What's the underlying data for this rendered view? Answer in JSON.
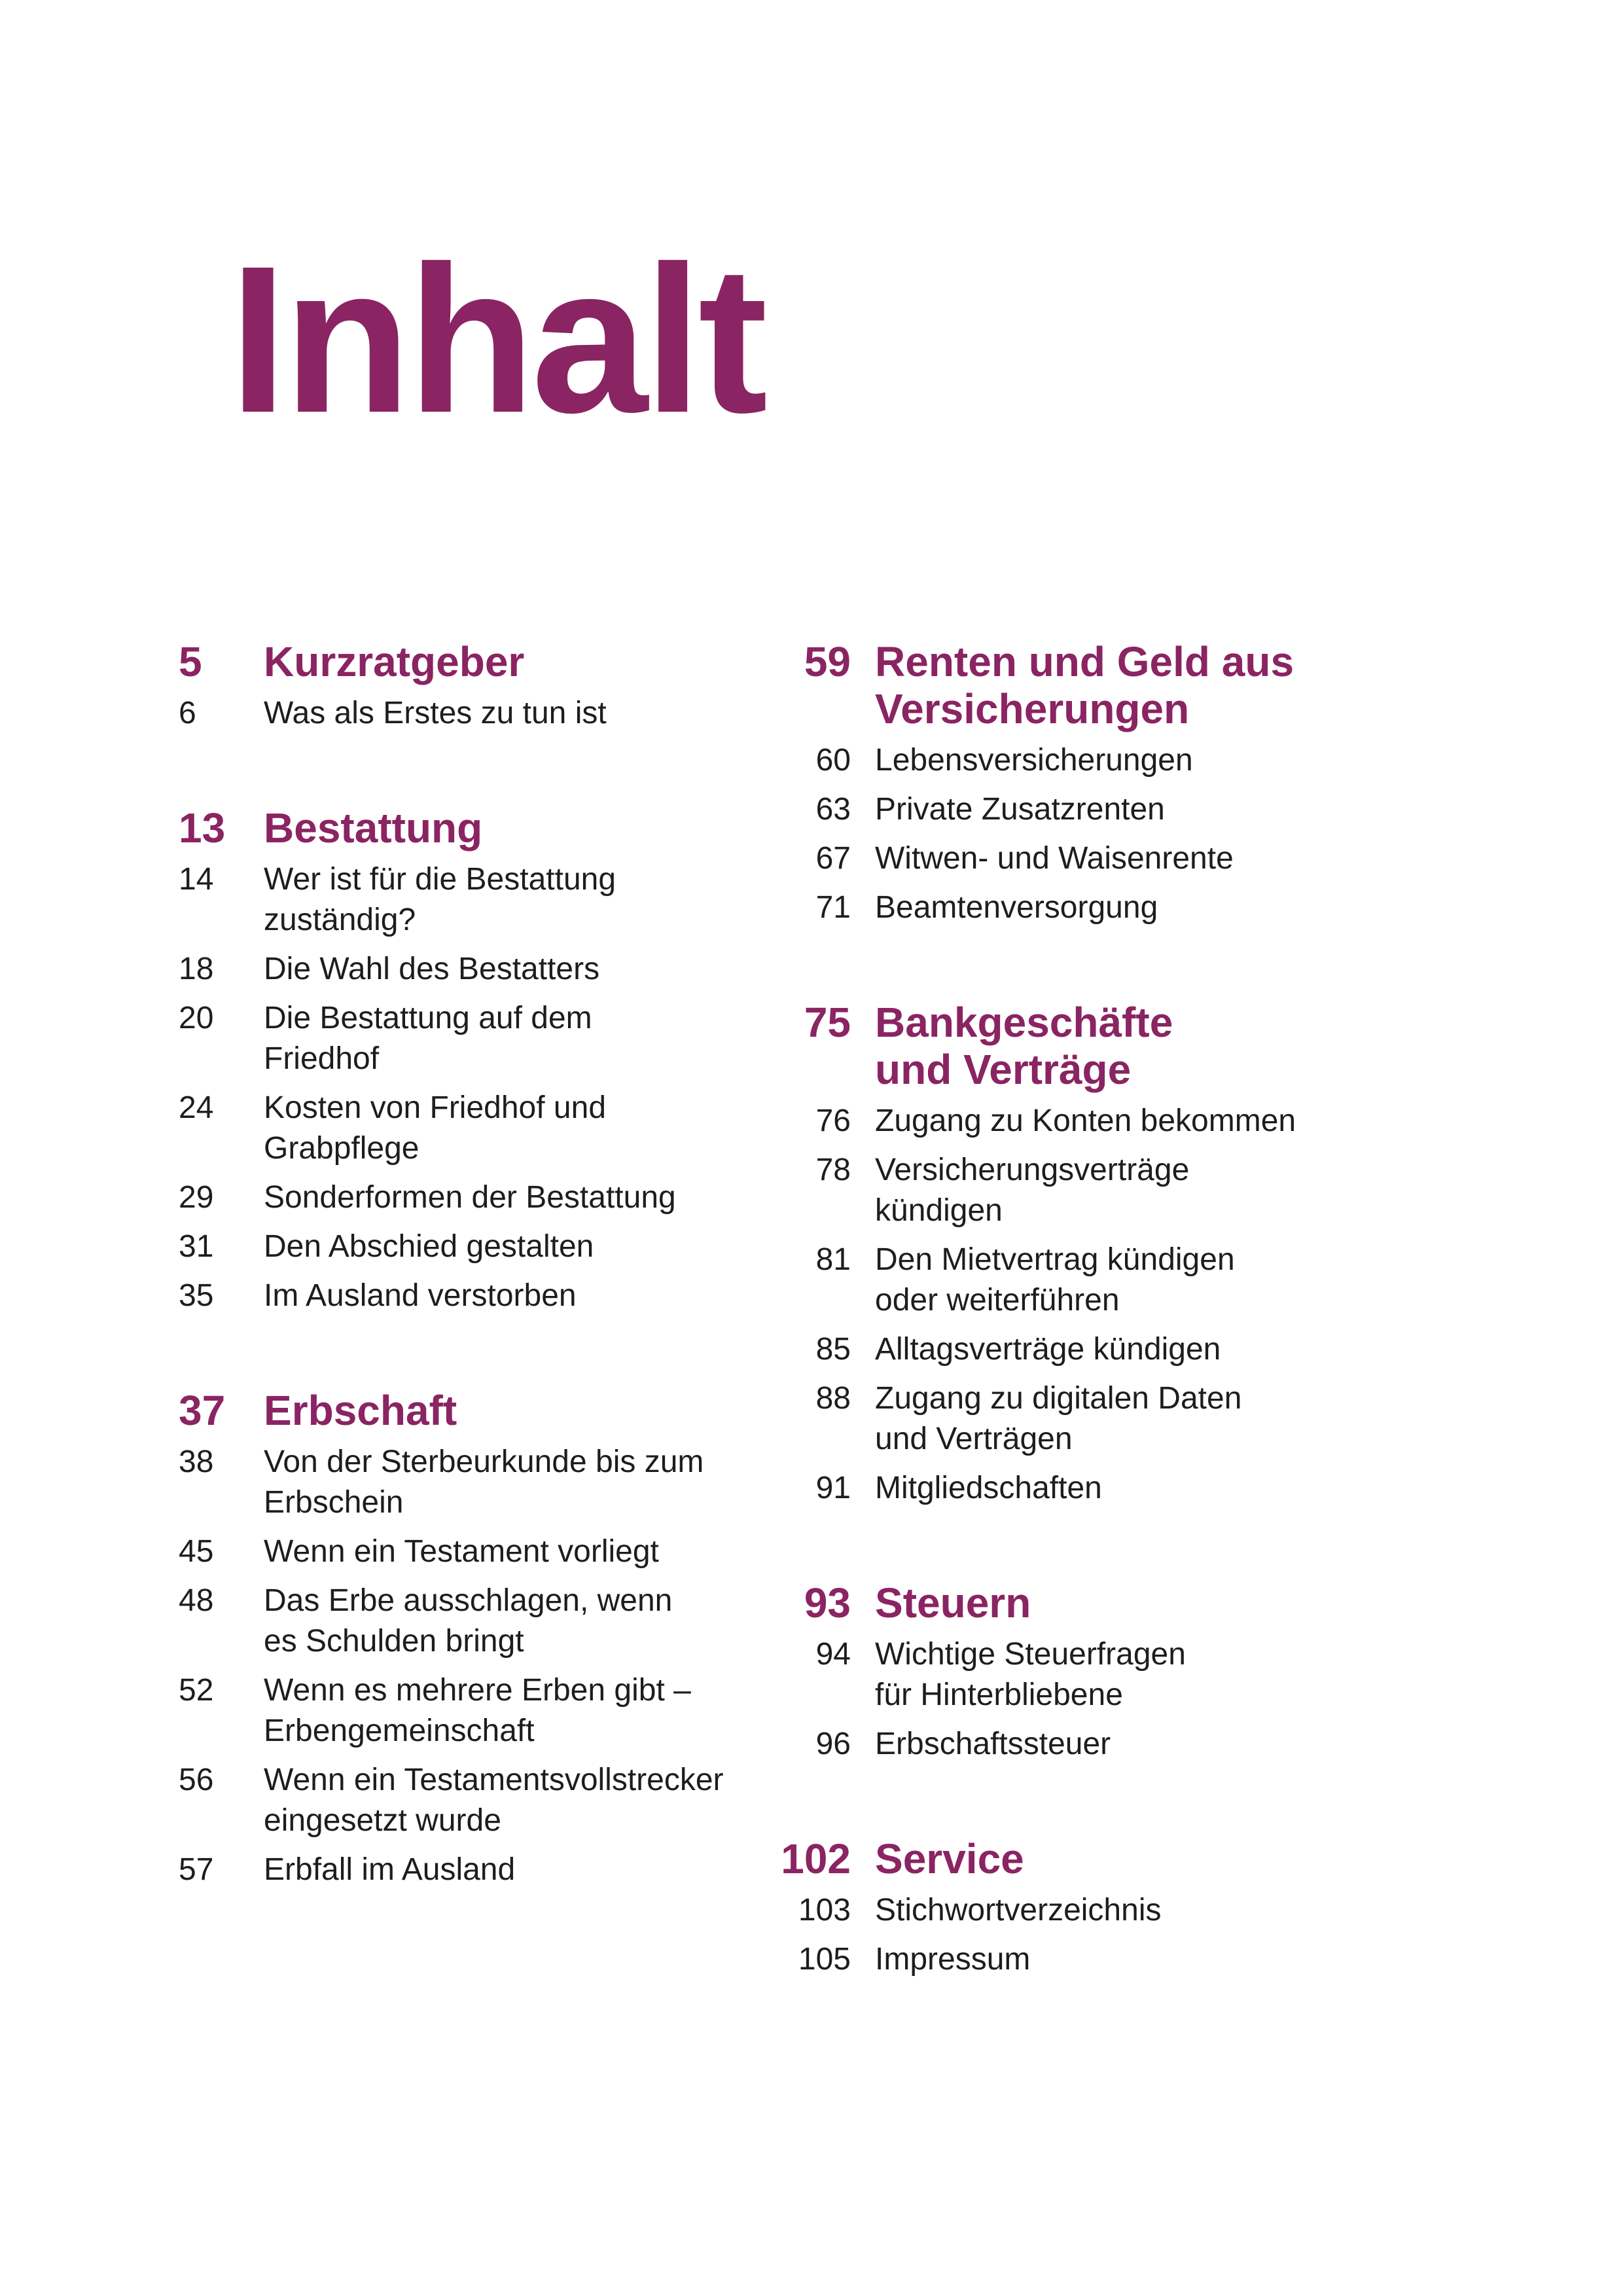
{
  "page": {
    "title": "Inhalt",
    "colors": {
      "accent": "#8a2462",
      "text": "#1d1d1d",
      "background": "#ffffff"
    }
  },
  "toc": {
    "left_column": {
      "sections": [
        {
          "number": "5",
          "title": "Kurzratgeber",
          "entries": [
            {
              "number": "6",
              "text": "Was als Erstes zu tun ist"
            }
          ]
        },
        {
          "number": "13",
          "title": "Bestattung",
          "entries": [
            {
              "number": "14",
              "text": "Wer ist für die Bestattung\nzuständig?"
            },
            {
              "number": "18",
              "text": "Die Wahl des Bestatters"
            },
            {
              "number": "20",
              "text": "Die Bestattung auf dem\nFriedhof"
            },
            {
              "number": "24",
              "text": "Kosten von Friedhof und\nGrabpflege"
            },
            {
              "number": "29",
              "text": "Sonderformen der Bestattung"
            },
            {
              "number": "31",
              "text": "Den Abschied gestalten"
            },
            {
              "number": "35",
              "text": "Im Ausland verstorben"
            }
          ]
        },
        {
          "number": "37",
          "title": "Erbschaft",
          "entries": [
            {
              "number": "38",
              "text": "Von der Sterbeurkunde bis zum\nErbschein"
            },
            {
              "number": "45",
              "text": "Wenn ein Testament vorliegt"
            },
            {
              "number": "48",
              "text": "Das Erbe ausschlagen, wenn\nes Schulden bringt"
            },
            {
              "number": "52",
              "text": "Wenn es mehrere Erben gibt –\nErbengemeinschaft"
            },
            {
              "number": "56",
              "text": "Wenn ein Testamentsvollstrecker\neingesetzt wurde"
            },
            {
              "number": "57",
              "text": "Erbfall im Ausland"
            }
          ]
        }
      ]
    },
    "right_column": {
      "sections": [
        {
          "number": "59",
          "title": "Renten und Geld aus\nVersicherungen",
          "entries": [
            {
              "number": "60",
              "text": "Lebensversicherungen"
            },
            {
              "number": "63",
              "text": "Private Zusatzrenten"
            },
            {
              "number": "67",
              "text": "Witwen- und Waisenrente"
            },
            {
              "number": "71",
              "text": "Beamtenversorgung"
            }
          ]
        },
        {
          "number": "75",
          "title": "Bankgeschäfte\nund Verträge",
          "entries": [
            {
              "number": "76",
              "text": "Zugang zu Konten bekommen"
            },
            {
              "number": "78",
              "text": "Versicherungsverträge\nkündigen"
            },
            {
              "number": "81",
              "text": "Den Mietvertrag kündigen\noder weiterführen"
            },
            {
              "number": "85",
              "text": "Alltagsverträge kündigen"
            },
            {
              "number": "88",
              "text": "Zugang zu digitalen Daten\nund Verträgen"
            },
            {
              "number": "91",
              "text": "Mitgliedschaften"
            }
          ]
        },
        {
          "number": "93",
          "title": "Steuern",
          "entries": [
            {
              "number": "94",
              "text": "Wichtige Steuerfragen\nfür Hinterbliebene"
            },
            {
              "number": "96",
              "text": "Erbschaftssteuer"
            }
          ]
        },
        {
          "number": "102",
          "title": "Service",
          "entries": [
            {
              "number": "103",
              "text": "Stichwortverzeichnis"
            },
            {
              "number": "105",
              "text": "Impressum"
            }
          ]
        }
      ]
    }
  }
}
